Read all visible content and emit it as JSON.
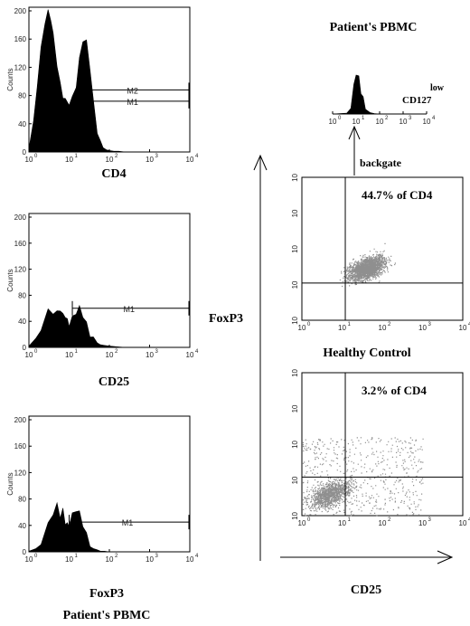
{
  "figure": {
    "title_top": "Patient's PBMC",
    "title_bottom": "Patient's PBMC",
    "backgate_label": "backgate",
    "left_axis_label": "FoxP3",
    "bottom_axis_label": "CD25",
    "healthy_label": "Healthy Control",
    "inset_label": "CD127",
    "inset_label_sup": "low"
  },
  "chart_data": [
    {
      "id": "hist-cd4",
      "type": "area",
      "xlabel": "CD4",
      "ylabel": "Counts",
      "x_scale": "log",
      "xlim": [
        1,
        10000
      ],
      "ylim": [
        0,
        200
      ],
      "y_ticks": [
        "0",
        "40",
        "80",
        "120",
        "160",
        "200"
      ],
      "x_ticks": [
        "10",
        "10",
        "10",
        "10",
        "10"
      ],
      "x_tick_exp": [
        "0",
        "1",
        "2",
        "3",
        "4"
      ],
      "gates": [
        {
          "label": "M2",
          "from": 18,
          "to": 10000,
          "y": 88
        },
        {
          "label": "M1",
          "from": 18,
          "to": 10000,
          "y": 72
        }
      ],
      "x": [
        1,
        1.3,
        1.6,
        2,
        2.5,
        3,
        3.5,
        4,
        5,
        6,
        7,
        8,
        10,
        12,
        15,
        18,
        22,
        27,
        33,
        40,
        50,
        60,
        70,
        85,
        100,
        130,
        170,
        250,
        400,
        1000
      ],
      "values": [
        5,
        40,
        95,
        145,
        185,
        198,
        190,
        165,
        125,
        95,
        80,
        72,
        70,
        75,
        95,
        130,
        160,
        155,
        120,
        70,
        30,
        12,
        6,
        3,
        2,
        1,
        1,
        0,
        0,
        0
      ]
    },
    {
      "id": "hist-cd25",
      "type": "area",
      "xlabel": "CD25",
      "ylabel": "Counts",
      "x_scale": "log",
      "xlim": [
        1,
        10000
      ],
      "ylim": [
        0,
        200
      ],
      "y_ticks": [
        "0",
        "40",
        "80",
        "120",
        "160",
        "200"
      ],
      "x_ticks": [
        "10",
        "10",
        "10",
        "10",
        "10"
      ],
      "x_tick_exp": [
        "0",
        "1",
        "2",
        "3",
        "4"
      ],
      "gates": [
        {
          "label": "M1",
          "from": 12,
          "to": 10000,
          "y": 60
        }
      ],
      "x": [
        1,
        1.5,
        2,
        3,
        4,
        5,
        6,
        7,
        8,
        9,
        10,
        12,
        15,
        18,
        22,
        27,
        33,
        40,
        50,
        60,
        75,
        100,
        150,
        250,
        500,
        1000,
        3000
      ],
      "values": [
        2,
        10,
        30,
        55,
        55,
        52,
        60,
        48,
        50,
        40,
        36,
        44,
        55,
        60,
        50,
        35,
        20,
        12,
        7,
        4,
        3,
        2,
        1,
        0,
        0,
        0,
        0
      ]
    },
    {
      "id": "hist-foxp3",
      "type": "area",
      "xlabel": "FoxP3",
      "ylabel": "Counts",
      "x_scale": "log",
      "xlim": [
        1,
        10000
      ],
      "ylim": [
        0,
        200
      ],
      "y_ticks": [
        "0",
        "40",
        "80",
        "120",
        "160",
        "200"
      ],
      "x_ticks": [
        "10",
        "10",
        "10",
        "10",
        "10"
      ],
      "x_tick_exp": [
        "0",
        "1",
        "2",
        "3",
        "4"
      ],
      "gates": [
        {
          "label": "M1",
          "from": 10,
          "to": 10000,
          "y": 45
        }
      ],
      "x": [
        1,
        1.5,
        2,
        3,
        4,
        5,
        6,
        7,
        8,
        9,
        10,
        12,
        15,
        18,
        22,
        27,
        33,
        40,
        50,
        60,
        75,
        100,
        150,
        300,
        1000
      ],
      "values": [
        1,
        5,
        15,
        40,
        60,
        70,
        55,
        62,
        45,
        40,
        42,
        55,
        65,
        58,
        42,
        25,
        12,
        5,
        3,
        1,
        1,
        0,
        0,
        0,
        0
      ]
    },
    {
      "id": "dot-patient",
      "type": "scatter",
      "xlabel": "CD25",
      "ylabel": "FoxP3",
      "x_scale": "log",
      "y_scale": "log",
      "xlim": [
        1,
        10000
      ],
      "ylim": [
        1,
        10000
      ],
      "x_ticks": [
        "10",
        "10",
        "10",
        "10",
        "10"
      ],
      "y_ticks": [
        "10",
        "10",
        "10",
        "10",
        "10"
      ],
      "tick_exp": [
        "0",
        "1",
        "2",
        "3",
        "4"
      ],
      "quadrant": {
        "x": 12,
        "y": 11
      },
      "annotation": "44.7% of CD4",
      "cloud": {
        "center_x_log": 1.6,
        "center_y_log": 1.45,
        "spread": 0.55,
        "n": 1800
      }
    },
    {
      "id": "dot-healthy",
      "type": "scatter",
      "xlabel": "CD25",
      "ylabel": "FoxP3",
      "x_scale": "log",
      "y_scale": "log",
      "xlim": [
        1,
        10000
      ],
      "ylim": [
        1,
        10000
      ],
      "x_ticks": [
        "10",
        "10",
        "10",
        "10",
        "10"
      ],
      "y_ticks": [
        "10",
        "10",
        "10",
        "10",
        "10"
      ],
      "tick_exp": [
        "0",
        "1",
        "2",
        "3",
        "4"
      ],
      "quadrant": {
        "x": 12,
        "y": 12
      },
      "annotation": "3.2% of CD4",
      "cloud": {
        "center_x_log": 0.7,
        "center_y_log": 0.6,
        "spread": 0.6,
        "n": 1600
      }
    },
    {
      "id": "hist-cd127",
      "type": "area",
      "xlabel": "CD127 low",
      "x_scale": "log",
      "xlim": [
        1,
        10000
      ],
      "x_ticks": [
        "10",
        "10",
        "10",
        "10",
        "10"
      ],
      "x_tick_exp": [
        "0",
        "1",
        "2",
        "3",
        "4"
      ],
      "x": [
        1,
        4,
        6,
        8,
        10,
        13,
        16,
        20,
        25,
        30,
        40,
        60,
        100,
        300
      ],
      "values": [
        0,
        2,
        20,
        65,
        100,
        85,
        55,
        35,
        18,
        8,
        3,
        1,
        0,
        0
      ]
    }
  ]
}
